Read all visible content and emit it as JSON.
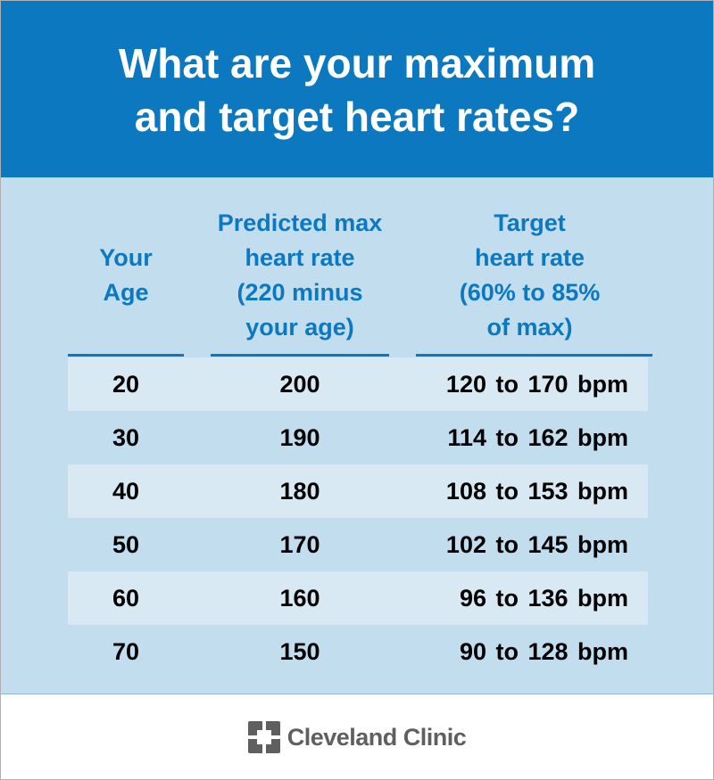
{
  "title_lines": [
    "What are your maximum",
    "and target heart rates?"
  ],
  "chart_data": {
    "type": "table",
    "columns": [
      [
        "Your",
        "Age"
      ],
      [
        "Predicted max",
        "heart rate",
        "(220 minus",
        "your age)"
      ],
      [
        "Target",
        "heart rate",
        "(60% to 85%",
        "of max)"
      ]
    ],
    "rows": [
      {
        "age": "20",
        "max": "200",
        "target": "120 to 170 bpm"
      },
      {
        "age": "30",
        "max": "190",
        "target": "114 to 162 bpm"
      },
      {
        "age": "40",
        "max": "180",
        "target": "108 to 153 bpm"
      },
      {
        "age": "50",
        "max": "170",
        "target": "102 to 145 bpm"
      },
      {
        "age": "60",
        "max": "160",
        "target": "96 to 136 bpm"
      },
      {
        "age": "70",
        "max": "150",
        "target": "90 to 128 bpm"
      }
    ]
  },
  "footer": {
    "logo_text": "Cleveland Clinic"
  },
  "colors": {
    "header": "#0b78bf",
    "background": "#c2deee",
    "stripe": "#d8e9f3",
    "logo": "#5f5f5f"
  }
}
